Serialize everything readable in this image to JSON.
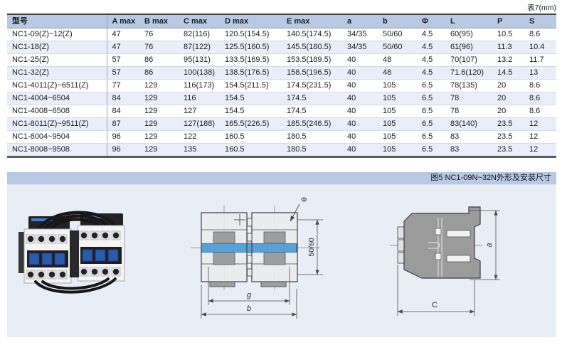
{
  "page": {
    "caption": "表7(mm)"
  },
  "table": {
    "headers": [
      "型号",
      "A max",
      "B max",
      "C max",
      "D max",
      "E max",
      "a",
      "b",
      "Φ",
      "L",
      "P",
      "S"
    ],
    "rows": [
      [
        "NC1-09(Z)~12(Z)",
        "47",
        "76",
        "82(116)",
        "120.5(154.5)",
        "140.5(174.5)",
        "34/35",
        "50/60",
        "4.5",
        "60(95)",
        "10.5",
        "8.6"
      ],
      [
        "NC1-18(Z)",
        "47",
        "76",
        "87(122)",
        "125.5(160.5)",
        "145.5(180.5)",
        "34/35",
        "50/60",
        "4.5",
        "61(96)",
        "11.3",
        "10.4"
      ],
      [
        "NC1-25(Z)",
        "57",
        "86",
        "95(131)",
        "133.5(169.5)",
        "153.5(189.5)",
        "40",
        "48",
        "4.5",
        "70(107)",
        "13.2",
        "11.7"
      ],
      [
        "NC1-32(Z)",
        "57",
        "86",
        "100(138)",
        "138.5(176.5)",
        "158.5(196.5)",
        "40",
        "48",
        "4.5",
        "71.6(120)",
        "14.5",
        "13"
      ],
      [
        "NC1-4011(Z)~6511(Z)",
        "77",
        "129",
        "116(173)",
        "154.5(211.5)",
        "174.5(231.5)",
        "40",
        "105",
        "6.5",
        "78(135)",
        "20",
        "8.6"
      ],
      [
        "NC1-4004~6504",
        "84",
        "129",
        "116",
        "154.5",
        "174.5",
        "40",
        "105",
        "6.5",
        "78",
        "20",
        "8.6"
      ],
      [
        "NC1-4008~6508",
        "84",
        "129",
        "127",
        "154.5",
        "174.5",
        "40",
        "105",
        "6.5",
        "78",
        "20",
        "8.6"
      ],
      [
        "NC1-8011(Z)~9511(Z)",
        "87",
        "129",
        "127(188)",
        "165.5(226.5)",
        "185.5(246.5)",
        "40",
        "105",
        "6.5",
        "83(140)",
        "23.5",
        "12"
      ],
      [
        "NC1-8004~9504",
        "96",
        "129",
        "122",
        "160.5",
        "180.5",
        "40",
        "105",
        "6.5",
        "83",
        "23.5",
        "12"
      ],
      [
        "NC1-8008~9508",
        "96",
        "129",
        "135",
        "160.5",
        "180.5",
        "40",
        "105",
        "6.5",
        "83",
        "23.5",
        "12"
      ]
    ]
  },
  "figure": {
    "title": "图5 NC1-09N~32N外形及安装尺寸",
    "labels": {
      "phi": "Φ",
      "vertical_spacing": "50/60",
      "g": "g",
      "b": "b",
      "a": "a",
      "c": "C"
    }
  },
  "colors": {
    "header_bg": "#b7c9e3",
    "panel_bg": "#e9edf6",
    "row_alt_bg": "#e9eef8",
    "blue_bar": "#58a0d8",
    "diagram_line": "#4a4d52",
    "body_gray": "#9b9b9b"
  }
}
